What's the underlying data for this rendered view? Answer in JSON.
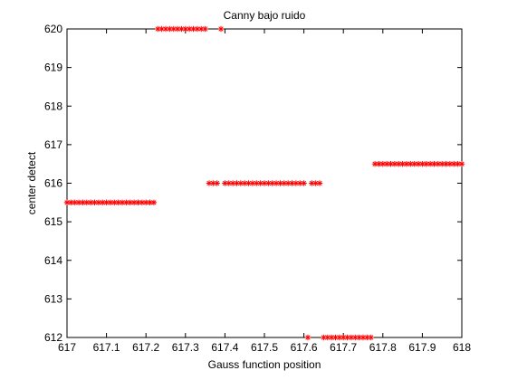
{
  "chart_data": {
    "type": "scatter",
    "title": "Canny bajo ruido",
    "xlabel": "Gauss function position",
    "ylabel": "center detect",
    "xlim": [
      617,
      618
    ],
    "ylim": [
      612,
      620
    ],
    "x_ticks": [
      "617",
      "617.1",
      "617.2",
      "617.3",
      "617.4",
      "617.5",
      "617.6",
      "617.7",
      "617.8",
      "617.9",
      "618"
    ],
    "y_ticks": [
      "612",
      "613",
      "614",
      "615",
      "616",
      "617",
      "618",
      "619",
      "620"
    ],
    "grid": false,
    "marker": "asterisk",
    "marker_color": "#ff0000",
    "x_step": 0.01,
    "series": [
      {
        "x": [
          617.0,
          617.01,
          617.02,
          617.03,
          617.04,
          617.05,
          617.06,
          617.07,
          617.08,
          617.09,
          617.1,
          617.11,
          617.12,
          617.13,
          617.14,
          617.15,
          617.16,
          617.17,
          617.18,
          617.19,
          617.2,
          617.21,
          617.22,
          617.23,
          617.24,
          617.25,
          617.26,
          617.27,
          617.28,
          617.29,
          617.3,
          617.31,
          617.32,
          617.33,
          617.34,
          617.35,
          617.36,
          617.37,
          617.38,
          617.39,
          617.4,
          617.41,
          617.42,
          617.43,
          617.44,
          617.45,
          617.46,
          617.47,
          617.48,
          617.49,
          617.5,
          617.51,
          617.52,
          617.53,
          617.54,
          617.55,
          617.56,
          617.57,
          617.58,
          617.59,
          617.6,
          617.61,
          617.62,
          617.63,
          617.64,
          617.65,
          617.66,
          617.67,
          617.68,
          617.69,
          617.7,
          617.71,
          617.72,
          617.73,
          617.74,
          617.75,
          617.76,
          617.77,
          617.78,
          617.79,
          617.8,
          617.81,
          617.82,
          617.83,
          617.84,
          617.85,
          617.86,
          617.87,
          617.88,
          617.89,
          617.9,
          617.91,
          617.92,
          617.93,
          617.94,
          617.95,
          617.96,
          617.97,
          617.98,
          617.99,
          618.0
        ],
        "y": [
          615.5,
          615.5,
          615.5,
          615.5,
          615.5,
          615.5,
          615.5,
          615.5,
          615.5,
          615.5,
          615.5,
          615.5,
          615.5,
          615.5,
          615.5,
          615.5,
          615.5,
          615.5,
          615.5,
          615.5,
          615.5,
          615.5,
          615.5,
          620,
          620,
          620,
          620,
          620,
          620,
          620,
          620,
          620,
          620,
          620,
          620,
          620,
          616,
          616,
          616,
          620,
          616,
          616,
          616,
          616,
          616,
          616,
          616,
          616,
          616,
          616,
          616,
          616,
          616,
          616,
          616,
          616,
          616,
          616,
          616,
          616,
          616,
          612,
          616,
          616,
          616,
          612,
          612,
          612,
          612,
          612,
          612,
          612,
          612,
          612,
          612,
          612,
          612,
          612,
          616.5,
          616.5,
          616.5,
          616.5,
          616.5,
          616.5,
          616.5,
          616.5,
          616.5,
          616.5,
          616.5,
          616.5,
          616.5,
          616.5,
          616.5,
          616.5,
          616.5,
          616.5,
          616.5,
          616.5,
          616.5,
          616.5,
          616.5
        ]
      }
    ]
  }
}
